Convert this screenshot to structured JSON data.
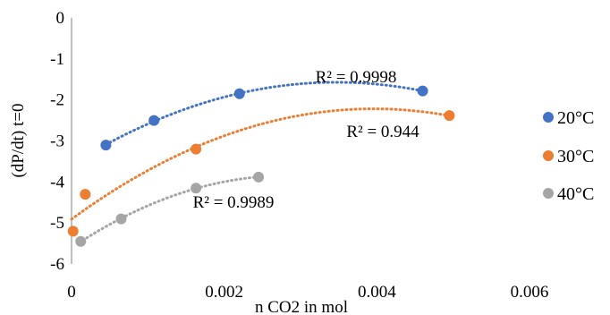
{
  "chart_data": {
    "type": "scatter",
    "xlabel": "n  CO2 in mol",
    "ylabel": "(dP/dt) t=0",
    "xlim": [
      0,
      0.006
    ],
    "ylim": [
      -6,
      0
    ],
    "x_ticks": [
      "0",
      "0.002",
      "0.004",
      "0.006"
    ],
    "y_ticks": [
      "0",
      "-1",
      "-2",
      "-3",
      "-4",
      "-5",
      "-6"
    ],
    "grid": false,
    "legend_position": "right",
    "series": [
      {
        "name": "20°C",
        "color": "#4472C4",
        "points": [
          [
            0.00045,
            -3.1
          ],
          [
            0.00108,
            -2.5
          ],
          [
            0.0022,
            -1.85
          ],
          [
            0.0046,
            -1.78
          ]
        ],
        "trendline": "polynomial",
        "trend_x": [
          0.00045,
          0.0046
        ],
        "r2_label": "R² = 0.9998"
      },
      {
        "name": "30°C",
        "color": "#ED7D31",
        "points": [
          [
            2e-05,
            -5.2
          ],
          [
            0.00018,
            -4.3
          ],
          [
            0.00163,
            -3.2
          ],
          [
            0.00495,
            -2.38
          ]
        ],
        "trendline": "polynomial",
        "trend_x": [
          0.0,
          0.00495
        ],
        "r2_label": "R² = 0.944"
      },
      {
        "name": "40°C",
        "color": "#A5A5A5",
        "points": [
          [
            0.00012,
            -5.45
          ],
          [
            0.00065,
            -4.9
          ],
          [
            0.00163,
            -4.15
          ],
          [
            0.00245,
            -3.88
          ]
        ],
        "trendline": "polynomial",
        "trend_x": [
          0.0001,
          0.00245
        ],
        "r2_label": "R² = 0.9989"
      }
    ]
  }
}
